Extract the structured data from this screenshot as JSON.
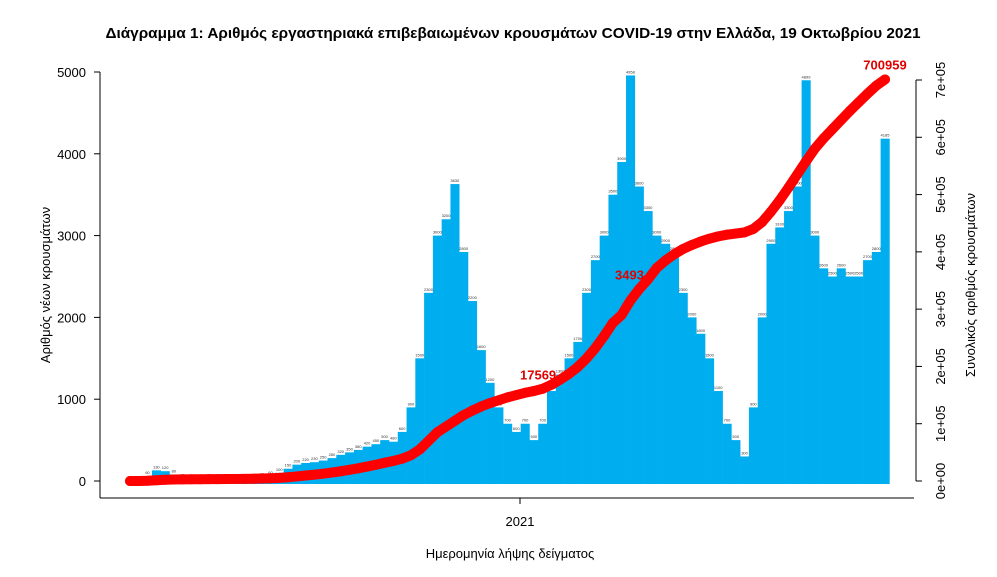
{
  "chart_data": {
    "type": "bar",
    "title": "Διάγραμμα 1: Αριθμός εργαστηριακά επιβεβαιωμένων κρουσμάτων COVID-19 στην Ελλάδα, 19 Οκτωβρίου 2021",
    "xlabel": "Ημερομηνία λήψης δείγματος",
    "ylabel": "Αριθμός νέων κρουσμάτων",
    "y2label": "Συνολικός αριθμός κρουσμάτων",
    "x_ticks": [
      "2021"
    ],
    "ylim": [
      0,
      5000
    ],
    "y_ticks": [
      "0",
      "1000",
      "2000",
      "3000",
      "4000",
      "5000"
    ],
    "y2lim": [
      0,
      700000
    ],
    "y2_ticks": [
      "0e+00",
      "1e+05",
      "2e+05",
      "3e+05",
      "4e+05",
      "5e+05",
      "6e+05",
      "7e+05"
    ],
    "grid": false,
    "series": [
      {
        "type": "bar",
        "color": "#00aeef",
        "values": [
          0,
          5,
          60,
          130,
          120,
          80,
          30,
          20,
          15,
          10,
          15,
          20,
          25,
          20,
          30,
          40,
          60,
          100,
          150,
          200,
          220,
          230,
          250,
          280,
          320,
          350,
          380,
          420,
          450,
          500,
          480,
          600,
          900,
          1500,
          2300,
          3000,
          3200,
          3630,
          2800,
          2200,
          1600,
          1200,
          900,
          700,
          600,
          700,
          500,
          700,
          1100,
          1300,
          1500,
          1700,
          2300,
          2700,
          3000,
          3500,
          3900,
          4958,
          3600,
          3300,
          3000,
          2900,
          2800,
          2300,
          2000,
          1800,
          1500,
          1100,
          700,
          500,
          300,
          900,
          2000,
          2900,
          3100,
          3300,
          3600,
          4899,
          3000,
          2600,
          2500,
          2600,
          2500,
          2500,
          2700,
          2800,
          4185
        ]
      },
      {
        "type": "line",
        "axis": "right",
        "color": "#ff0000",
        "values": [
          0,
          50,
          500,
          1300,
          2100,
          2600,
          2800,
          3000,
          3100,
          3200,
          3300,
          3400,
          3600,
          3800,
          4000,
          4300,
          4800,
          5500,
          6600,
          8000,
          9600,
          11000,
          12800,
          14800,
          17000,
          19500,
          22200,
          25200,
          28300,
          31800,
          35000,
          39000,
          45000,
          55000,
          70000,
          85000,
          95000,
          105000,
          115000,
          123000,
          130000,
          136000,
          141000,
          146000,
          150000,
          154000,
          157000,
          161000,
          168000,
          177000,
          187000,
          199000,
          214000,
          232000,
          253000,
          276000,
          290000,
          315000,
          335000,
          352000,
          372000,
          385000,
          396000,
          405000,
          412000,
          418000,
          423000,
          427000,
          430000,
          432000,
          434000,
          440000,
          452000,
          470000,
          490000,
          512000,
          535000,
          558000,
          580000,
          598000,
          614000,
          630000,
          646000,
          661000,
          676000,
          690000,
          700959
        ]
      }
    ],
    "annotations": [
      {
        "text": "17569",
        "index": 49
      },
      {
        "text": "3493",
        "index": 59
      },
      {
        "text": "700959",
        "index": 86
      }
    ]
  }
}
